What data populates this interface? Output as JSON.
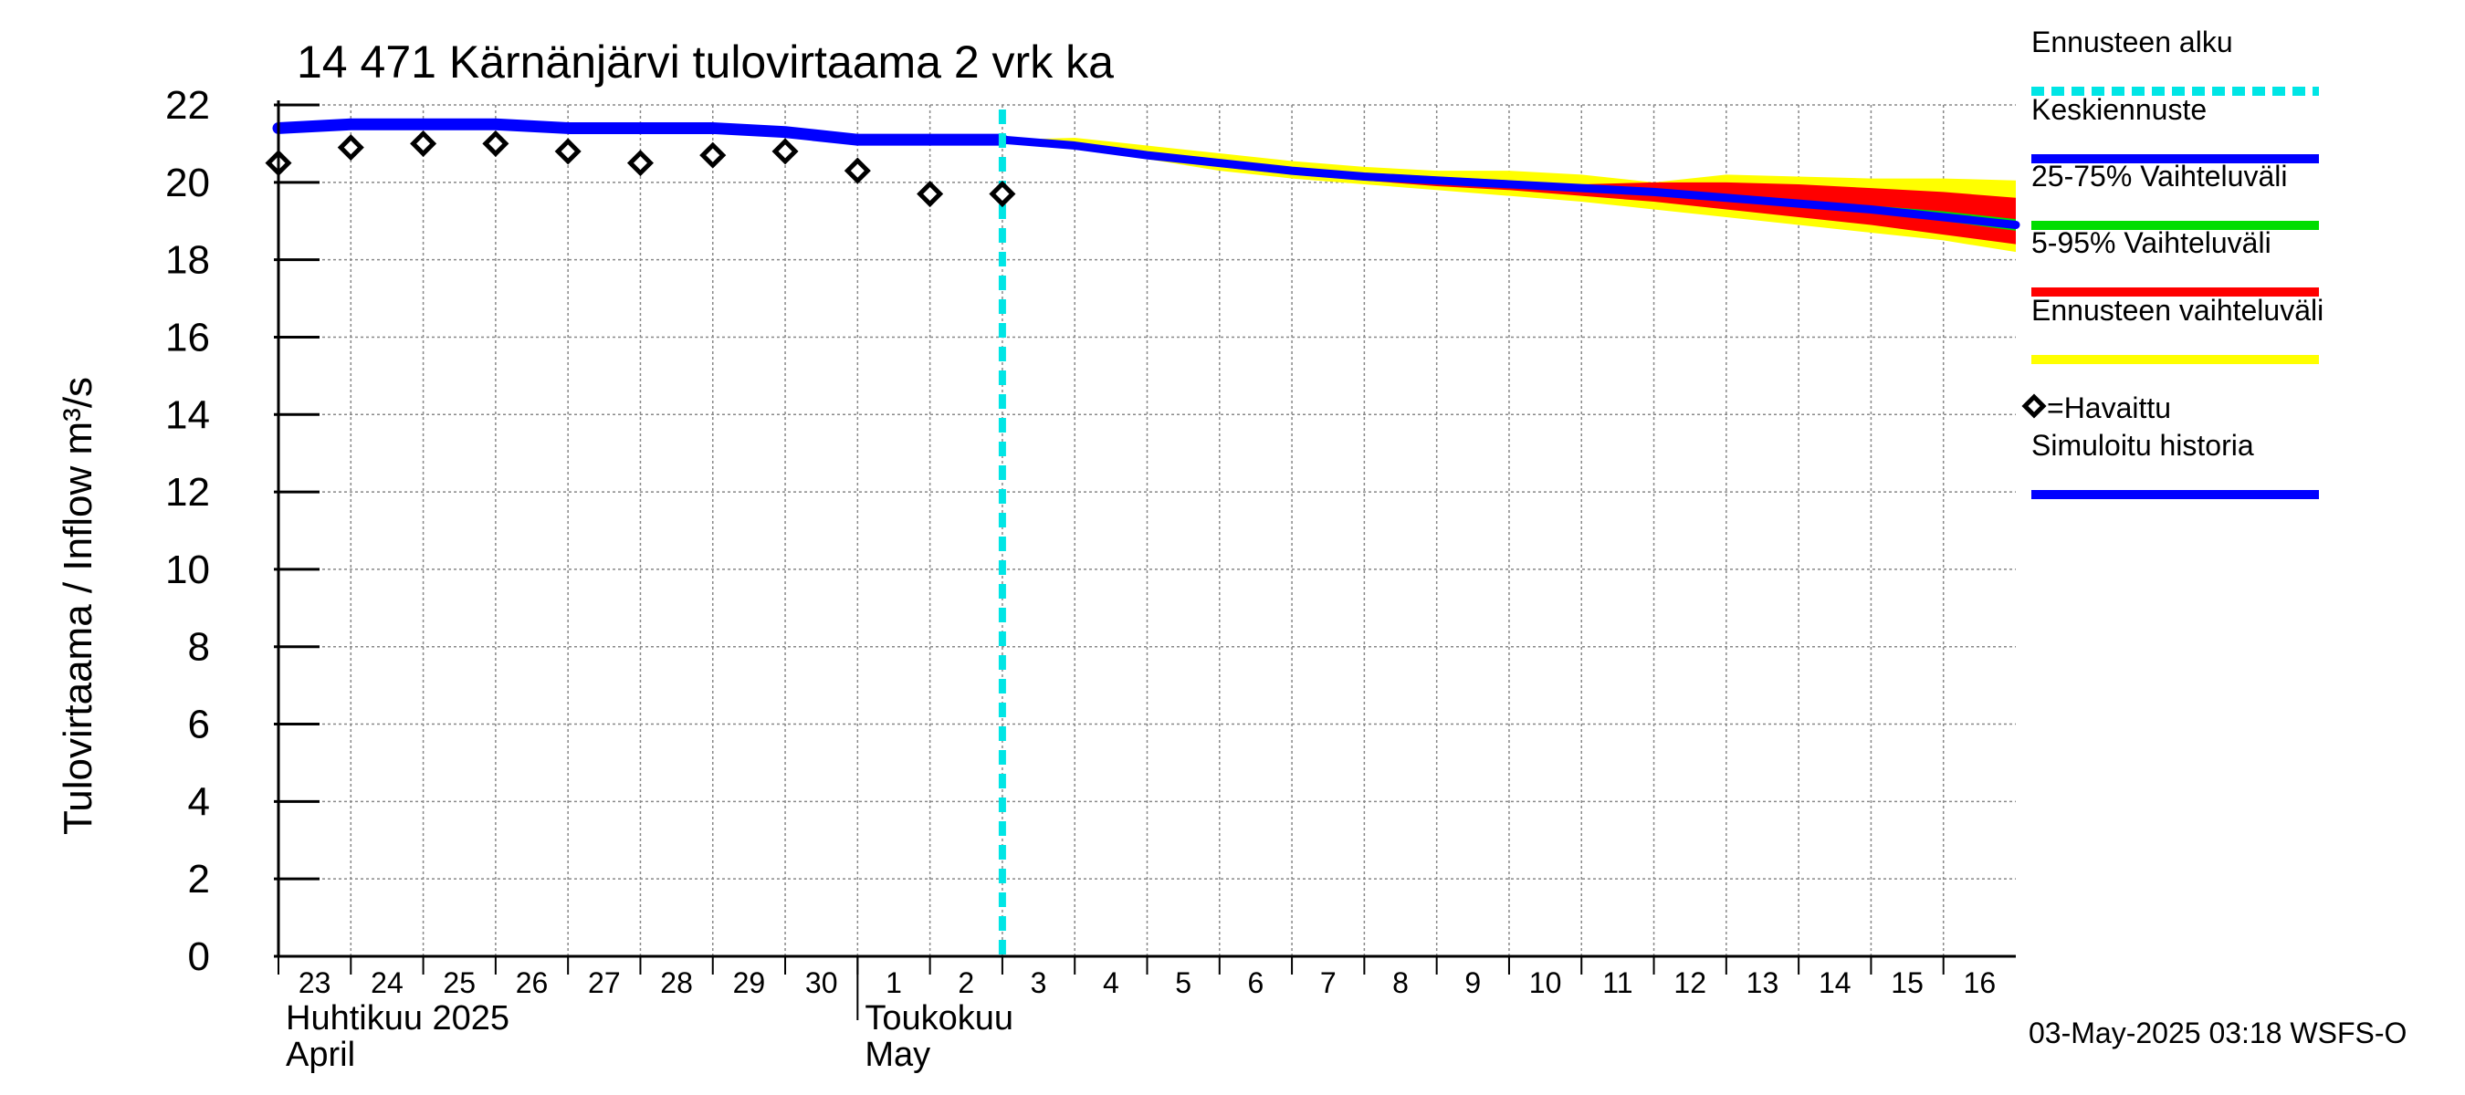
{
  "chart_data": {
    "type": "line",
    "title": "14 471 Kärnänjärvi tulovirtaama 2 vrk ka",
    "ylabel_fi": "Tulovirtaama / Inflow",
    "ylabel_unit": "m³/s",
    "ylim": [
      0,
      22
    ],
    "yticks": [
      0,
      2,
      4,
      6,
      8,
      10,
      12,
      14,
      16,
      18,
      20,
      22
    ],
    "x_day_range": [
      0,
      24
    ],
    "x_tick_labels": [
      "23",
      "24",
      "25",
      "26",
      "27",
      "28",
      "29",
      "30",
      "1",
      "2",
      "3",
      "4",
      "5",
      "6",
      "7",
      "8",
      "9",
      "10",
      "11",
      "12",
      "13",
      "14",
      "15",
      "16"
    ],
    "month_labels": [
      {
        "day": 0,
        "line1": "Huhtikuu  2025",
        "line2": "April"
      },
      {
        "day": 8,
        "line1": "Toukokuu",
        "line2": "May"
      }
    ],
    "forecast_start_day": 10.0,
    "simulated_history": {
      "x": [
        0,
        1,
        2,
        3,
        4,
        5,
        6,
        7,
        8,
        9,
        10
      ],
      "y": [
        21.4,
        21.5,
        21.5,
        21.5,
        21.4,
        21.4,
        21.4,
        21.3,
        21.1,
        21.1,
        21.1
      ]
    },
    "observed": {
      "x": [
        0,
        1,
        2,
        3,
        4,
        5,
        6,
        7,
        8,
        9,
        10
      ],
      "y": [
        20.5,
        20.9,
        21.0,
        21.0,
        20.8,
        20.5,
        20.7,
        20.8,
        20.3,
        19.7,
        19.7
      ]
    },
    "forecast": {
      "x": [
        10,
        11,
        12,
        13,
        14,
        15,
        16,
        17,
        18,
        19,
        20,
        21,
        22,
        23,
        24
      ],
      "median": [
        21.1,
        20.95,
        20.7,
        20.5,
        20.3,
        20.15,
        20.05,
        19.95,
        19.85,
        19.75,
        19.6,
        19.45,
        19.3,
        19.1,
        18.9
      ],
      "p25": [
        21.1,
        20.95,
        20.7,
        20.5,
        20.3,
        20.15,
        20.05,
        19.95,
        19.85,
        19.75,
        19.55,
        19.4,
        19.25,
        19.0,
        18.75
      ],
      "p75": [
        21.1,
        20.95,
        20.7,
        20.5,
        20.3,
        20.15,
        20.05,
        19.95,
        19.85,
        19.75,
        19.65,
        19.5,
        19.4,
        19.25,
        19.05
      ],
      "p05": [
        21.1,
        20.9,
        20.65,
        20.4,
        20.2,
        20.05,
        19.9,
        19.8,
        19.65,
        19.5,
        19.3,
        19.1,
        18.9,
        18.65,
        18.4
      ],
      "p95": [
        21.1,
        21.0,
        20.75,
        20.55,
        20.35,
        20.25,
        20.15,
        20.05,
        19.95,
        20.0,
        20.0,
        19.95,
        19.85,
        19.75,
        19.6
      ],
      "min": [
        21.1,
        20.85,
        20.6,
        20.3,
        20.1,
        19.95,
        19.8,
        19.65,
        19.5,
        19.3,
        19.1,
        18.9,
        18.7,
        18.5,
        18.2
      ],
      "max": [
        21.1,
        21.15,
        20.95,
        20.75,
        20.55,
        20.4,
        20.3,
        20.3,
        20.2,
        20.0,
        20.2,
        20.15,
        20.1,
        20.1,
        20.05
      ]
    },
    "colors": {
      "forecast_start": "#00e5e5",
      "median": "#0000ff",
      "p25_75": "#00dd00",
      "p05_95": "#ff0000",
      "range": "#ffff00",
      "history": "#0000ff",
      "observed": "#000000",
      "grid": "#888888"
    },
    "legend": [
      {
        "label": "Ennusteen alku",
        "style": "dashed",
        "color": "#00e5e5"
      },
      {
        "label": "Keskiennuste",
        "style": "solid",
        "color": "#0000ff"
      },
      {
        "label": "25-75% Vaihteluväli",
        "style": "solid",
        "color": "#00dd00"
      },
      {
        "label": "5-95% Vaihteluväli",
        "style": "solid",
        "color": "#ff0000"
      },
      {
        "label": "Ennusteen vaihteluväli",
        "style": "solid",
        "color": "#ffff00"
      },
      {
        "label": "=Havaittu",
        "style": "marker",
        "color": "#000000"
      },
      {
        "label": "Simuloitu historia",
        "style": "solid",
        "color": "#0000ff"
      }
    ],
    "footer": "03-May-2025 03:18 WSFS-O"
  }
}
